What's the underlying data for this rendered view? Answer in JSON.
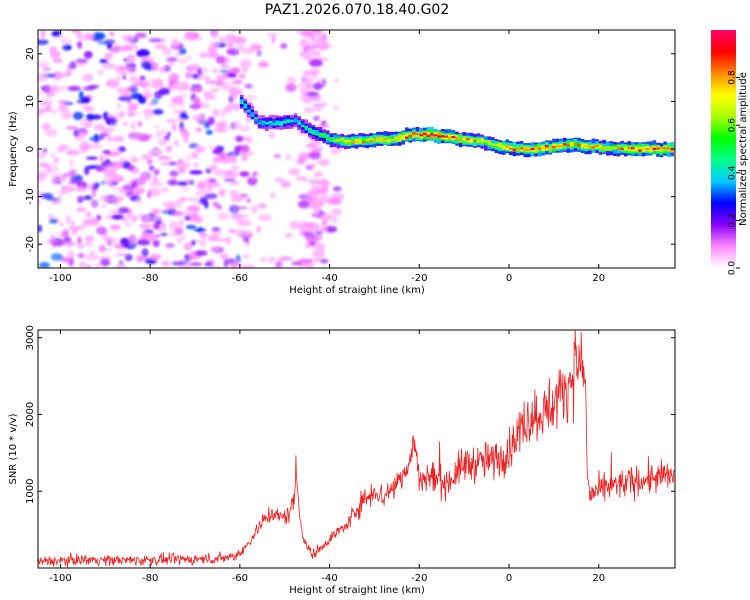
{
  "title": "PAZ1.2026.070.18.40.G02",
  "chart_data": [
    {
      "type": "heatmap",
      "xlabel": "Height of straight line (km)",
      "ylabel": "Frequency (Hz)",
      "xlim": [
        -105,
        37
      ],
      "ylim": [
        -25,
        25
      ],
      "x_ticks": [
        -100,
        -80,
        -60,
        -40,
        -20,
        0,
        20
      ],
      "y_ticks": [
        -20,
        -10,
        0,
        10,
        20
      ],
      "colorbar": {
        "label": "Normalized spectral amplitude",
        "range": [
          0.0,
          1.0
        ],
        "ticks": [
          "0.0",
          "0.2",
          "0.4",
          "0.6",
          "0.8"
        ],
        "colors": [
          "#ffffff",
          "#ff88ff",
          "#8800ff",
          "#0000ff",
          "#00ccff",
          "#00ff88",
          "#00ff00",
          "#aaff00",
          "#ffff00",
          "#ff8800",
          "#ff0000",
          "#ff0066"
        ]
      },
      "ridge": {
        "x": [
          -60,
          -56,
          -52,
          -48,
          -44,
          -40,
          -36,
          -30,
          -26,
          -22,
          -18,
          -14,
          -10,
          -6,
          -2,
          2,
          6,
          10,
          14,
          18,
          22,
          26,
          30,
          36
        ],
        "freq": [
          10,
          5.5,
          5.5,
          6,
          3.5,
          2,
          1.5,
          2,
          2,
          3,
          3,
          2.5,
          2,
          1.5,
          0.5,
          0,
          0,
          0.5,
          1,
          0.5,
          0.2,
          0,
          0,
          0
        ],
        "amplitude": [
          0.45,
          0.4,
          0.45,
          0.4,
          0.5,
          0.6,
          0.75,
          0.8,
          0.8,
          0.9,
          0.95,
          0.9,
          0.85,
          0.7,
          0.8,
          0.85,
          0.9,
          0.85,
          0.8,
          0.8,
          0.7,
          0.85,
          0.9,
          0.9
        ]
      }
    },
    {
      "type": "line",
      "xlabel": "Height of straight line (km)",
      "ylabel": "SNR (10 * v/v)",
      "xlim": [
        -105,
        37
      ],
      "ylim": [
        0,
        3100
      ],
      "x_ticks": [
        -100,
        -80,
        -60,
        -40,
        -20,
        0,
        20
      ],
      "y_ticks": [
        1000,
        2000,
        3000
      ],
      "series": [
        {
          "name": "SNR",
          "color": "#ee2222",
          "x": [
            -105,
            -95,
            -85,
            -75,
            -65,
            -61,
            -59,
            -57,
            -55,
            -53,
            -51,
            -49,
            -48,
            -47.5,
            -46,
            -44,
            -42,
            -40,
            -38,
            -36,
            -34,
            -32,
            -30,
            -28,
            -26,
            -24,
            -22,
            -21,
            -20,
            -18,
            -14,
            -10,
            -6,
            -2,
            0,
            2,
            4,
            6,
            8,
            10,
            12,
            14,
            16,
            17,
            17.5,
            18,
            20,
            24,
            28,
            32,
            37
          ],
          "values": [
            80,
            110,
            100,
            110,
            120,
            160,
            250,
            420,
            600,
            720,
            650,
            700,
            900,
            1250,
            400,
            170,
            260,
            380,
            480,
            560,
            780,
            900,
            1020,
            920,
            1050,
            1180,
            1400,
            1650,
            1120,
            1200,
            1100,
            1350,
            1380,
            1420,
            1550,
            1750,
            1950,
            2000,
            2050,
            2150,
            2300,
            2500,
            2700,
            2450,
            1200,
            950,
            1000,
            1080,
            1130,
            1170,
            1200
          ]
        }
      ]
    }
  ]
}
